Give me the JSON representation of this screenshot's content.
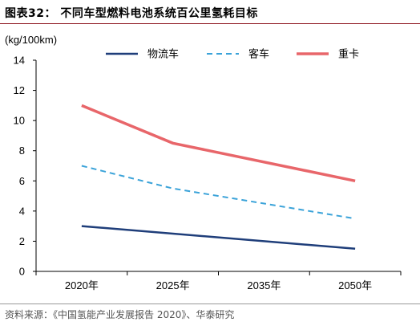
{
  "figure": {
    "title": "图表32：  不同车型燃料电池系统百公里氢耗目标",
    "source": "资料来源：《中国氢能产业发展报告 2020》、华泰研究"
  },
  "colors": {
    "title_rule": "#8b0f1a",
    "axis": "#000000",
    "text": "#000000"
  },
  "chart_data": {
    "type": "line",
    "ylabel": "(kg/100km)",
    "ylim": [
      0,
      14
    ],
    "yticks": [
      0,
      2,
      4,
      6,
      8,
      10,
      12,
      14
    ],
    "categories": [
      "2020年",
      "2025年",
      "2035年",
      "2050年"
    ],
    "grid": false,
    "legend_position": "top",
    "series": [
      {
        "name": "物流车",
        "style": "solid",
        "color": "#1f3e7a",
        "values": [
          3.0,
          null,
          null,
          1.5
        ]
      },
      {
        "name": "客车",
        "style": "dashed",
        "color": "#3ba3d9",
        "values": [
          7.0,
          5.5,
          null,
          3.5
        ]
      },
      {
        "name": "重卡",
        "style": "solid",
        "color": "#e8666a",
        "values": [
          11.0,
          8.5,
          null,
          6.0
        ]
      }
    ]
  }
}
